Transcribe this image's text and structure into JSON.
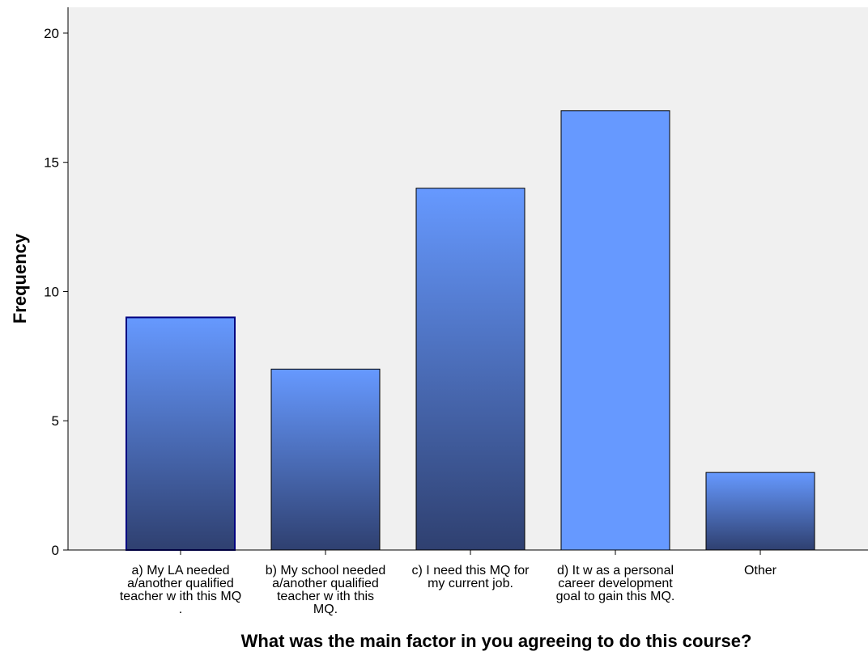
{
  "chart_data": {
    "type": "bar",
    "categories": [
      [
        "a) My LA needed",
        "a/another qualified",
        "teacher w ith this MQ",
        "."
      ],
      [
        "b) My school needed",
        "a/another qualified",
        "teacher w ith this",
        "MQ."
      ],
      [
        "c) I need this MQ for",
        "my current job."
      ],
      [
        "d) It w as a personal",
        "career development",
        "goal to gain this MQ."
      ],
      [
        "Other"
      ]
    ],
    "values": [
      9,
      7,
      14,
      17,
      3
    ],
    "ylim": [
      0,
      21
    ],
    "yticks": [
      "0",
      "5",
      "10",
      "15",
      "20"
    ],
    "xlabel": "What was the main factor in you agreeing to do this course?",
    "ylabel": "Frequency",
    "grid": false,
    "colors": {
      "plot_background": "#f0f0f0",
      "bar_top": "#6699ff",
      "bar_bottom": "#2f4070",
      "bar_stroke": "#000000",
      "bar_stroke_highlight": "#000080"
    }
  }
}
